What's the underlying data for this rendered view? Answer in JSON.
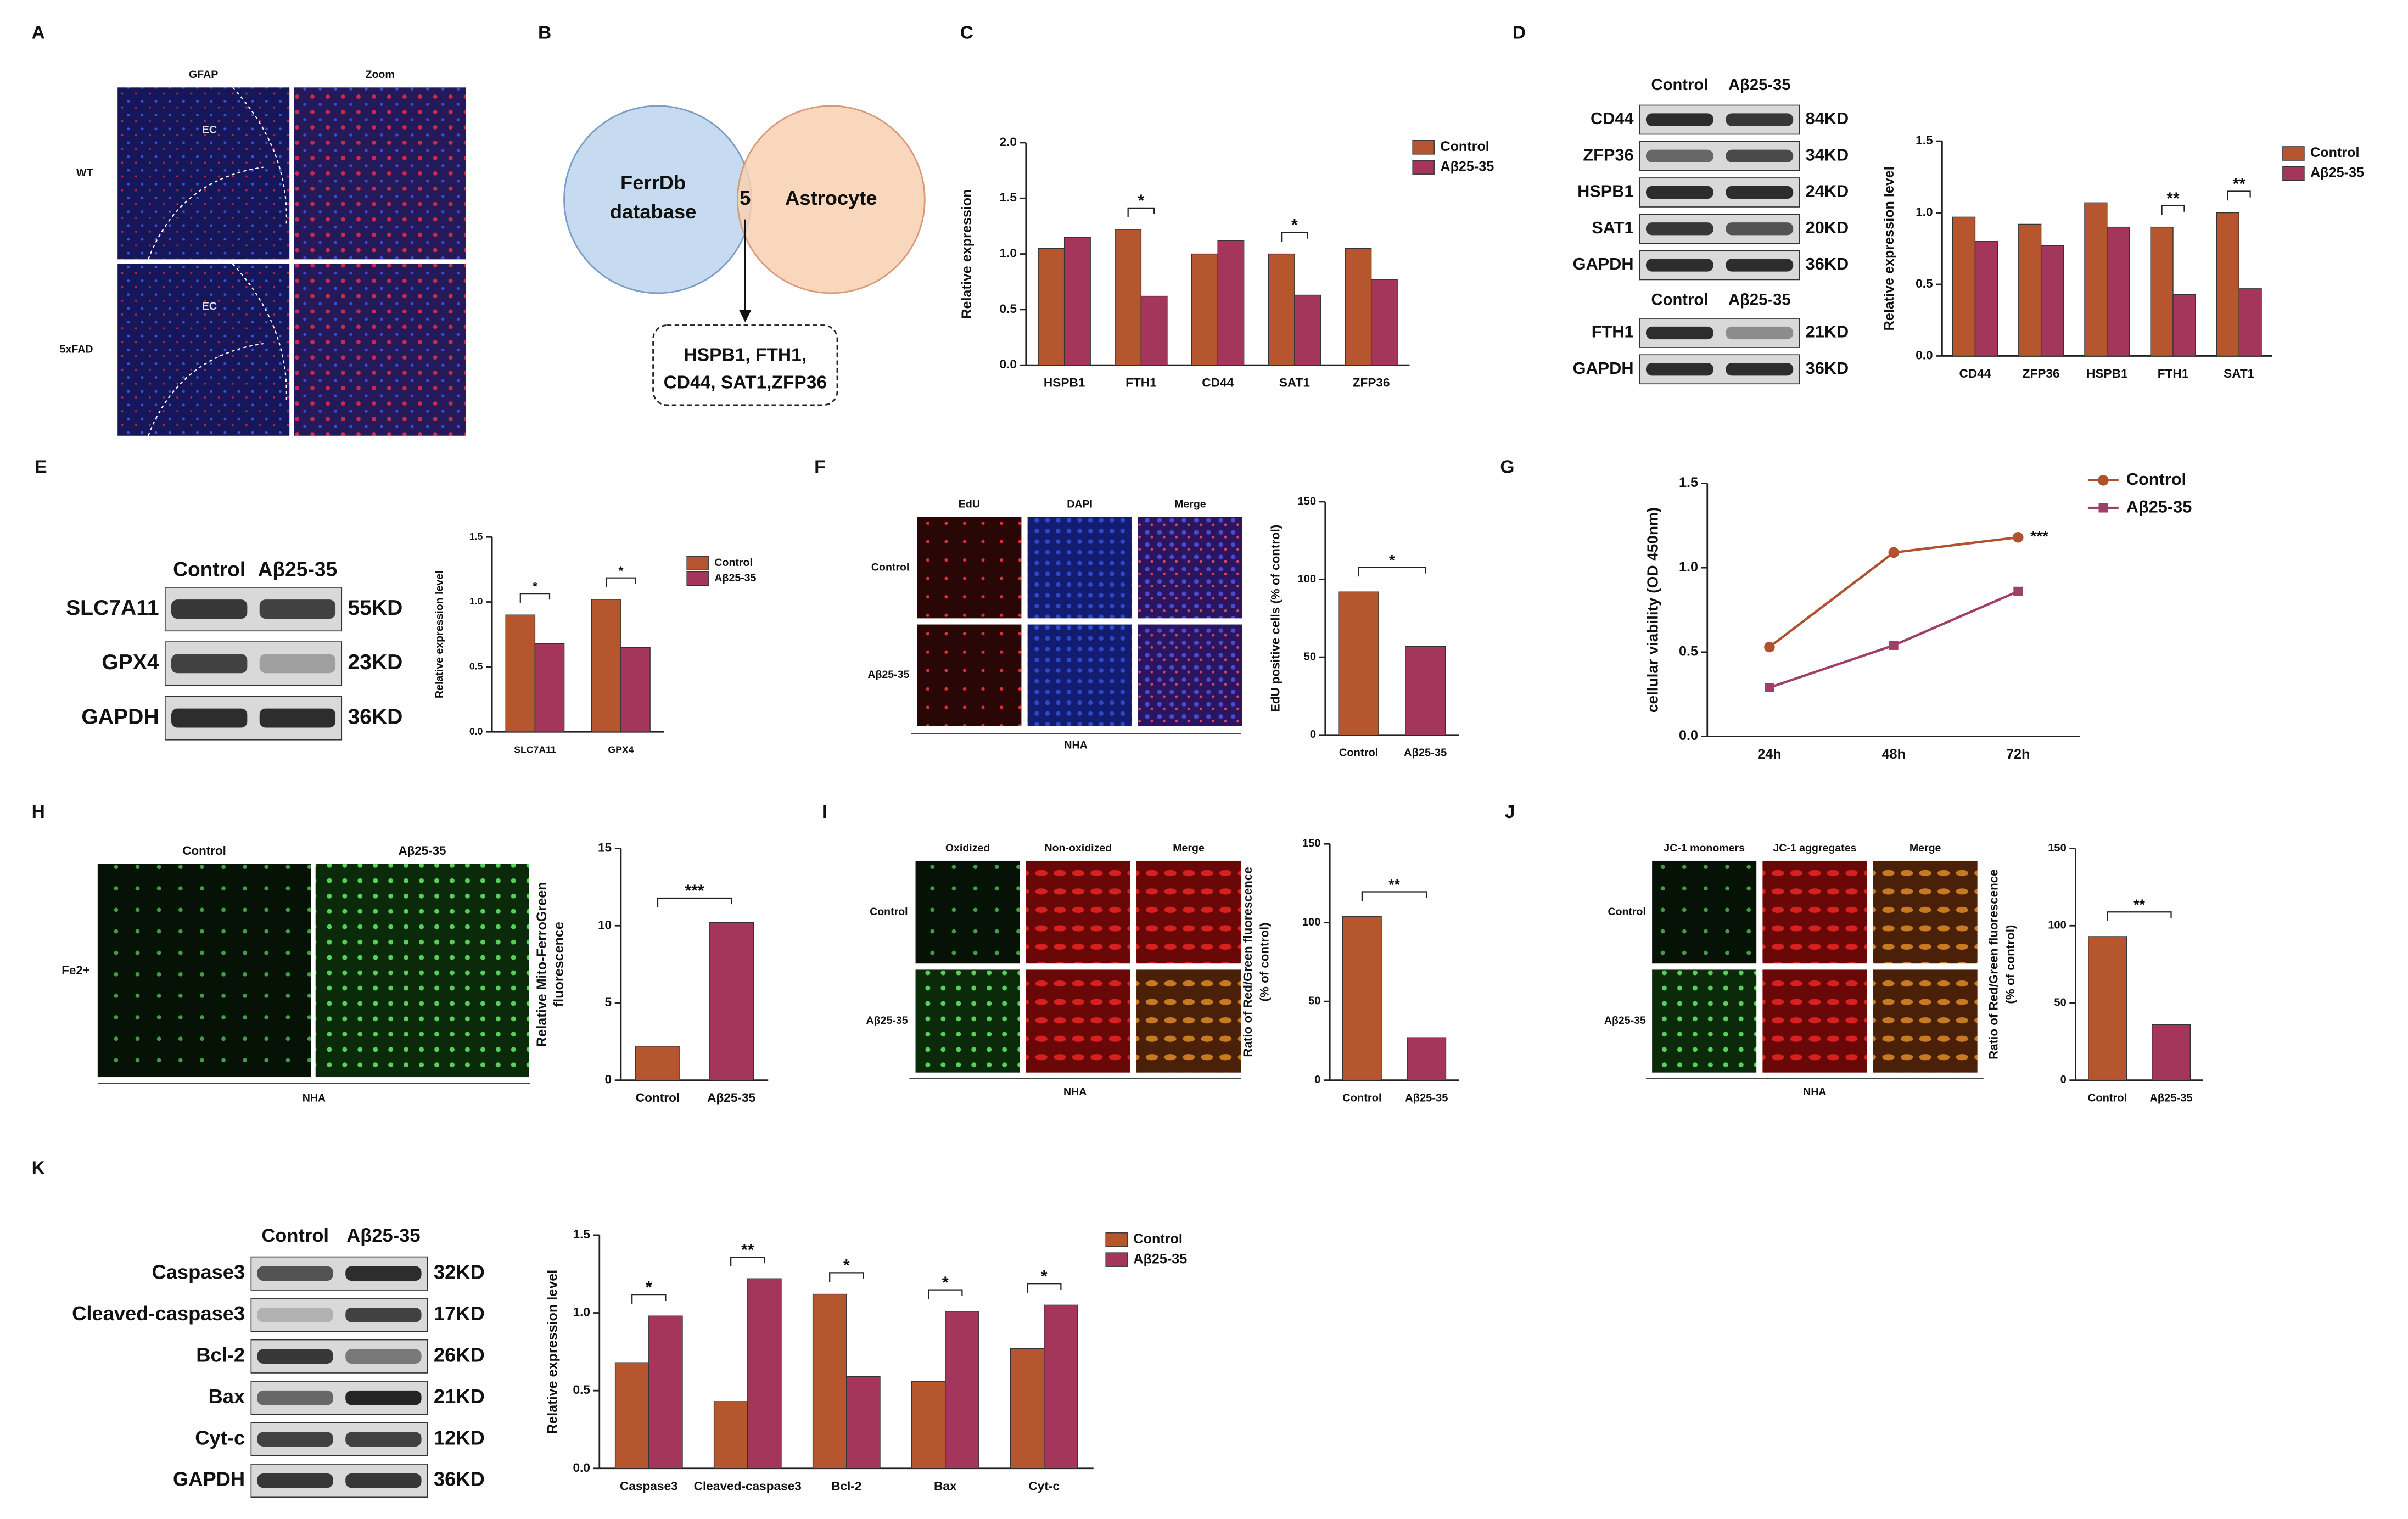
{
  "panel_letters": [
    "A",
    "B",
    "C",
    "D",
    "E",
    "F",
    "G",
    "H",
    "I",
    "J",
    "K"
  ],
  "venn": {
    "left": [
      "FerrDb",
      "database"
    ],
    "overlap": "5",
    "right": "Astrocyte",
    "genes": [
      "HSPB1, FTH1,",
      "CD44, SAT1,ZFP36"
    ]
  },
  "image_panels": [
    {
      "columns": [
        "GFAP",
        "Zoom"
      ],
      "rows": [
        "WT",
        "5xFAD"
      ],
      "region_labels": [
        "EC",
        "EC"
      ]
    },
    {
      "columns": [
        "EdU",
        "DAPI",
        "Merge"
      ],
      "rows": [
        "Control",
        "Aβ25-35"
      ],
      "caption": "NHA"
    },
    {
      "columns": [
        "Control",
        "Aβ25-35"
      ],
      "rows": [
        "Fe2+"
      ],
      "caption": "NHA"
    },
    {
      "columns": [
        "Oxidized",
        "Non-oxidized",
        "Merge"
      ],
      "rows": [
        "Control",
        "Aβ25-35"
      ],
      "caption": "NHA"
    },
    {
      "columns": [
        "JC-1 monomers",
        "JC-1 aggregates",
        "Merge"
      ],
      "rows": [
        "Control",
        "Aβ25-35"
      ],
      "caption": "NHA"
    }
  ],
  "blots": [
    {
      "columns": [
        "Control",
        "Aβ25-35"
      ],
      "rows": [
        {
          "protein": "CD44",
          "size": "84KD"
        },
        {
          "protein": "ZFP36",
          "size": "34KD"
        },
        {
          "protein": "HSPB1",
          "size": "24KD"
        },
        {
          "protein": "SAT1",
          "size": "20KD"
        },
        {
          "protein": "GAPDH",
          "size": "36KD"
        }
      ]
    },
    {
      "columns": [
        "Control",
        "Aβ25-35"
      ],
      "rows": [
        {
          "protein": "FTH1",
          "size": "21KD"
        },
        {
          "protein": "GAPDH",
          "size": "36KD"
        }
      ]
    },
    {
      "columns": [
        "Control",
        "Aβ25-35"
      ],
      "rows": [
        {
          "protein": "SLC7A11",
          "size": "55KD"
        },
        {
          "protein": "GPX4",
          "size": "23KD"
        },
        {
          "protein": "GAPDH",
          "size": "36KD"
        }
      ]
    },
    {
      "columns": [
        "Control",
        "Aβ25-35"
      ],
      "rows": [
        {
          "protein": "Caspase3",
          "size": "32KD"
        },
        {
          "protein": "Cleaved-caspase3",
          "size": "17KD"
        },
        {
          "protein": "Bcl-2",
          "size": "26KD"
        },
        {
          "protein": "Bax",
          "size": "21KD"
        },
        {
          "protein": "Cyt-c",
          "size": "12KD"
        },
        {
          "protein": "GAPDH",
          "size": "36KD"
        }
      ]
    }
  ],
  "chart_data": [
    {
      "type": "bar",
      "ylabel": [
        "Relative expression"
      ],
      "categories": [
        "HSPB1",
        "FTH1",
        "CD44",
        "SAT1",
        "ZFP36"
      ],
      "series": [
        {
          "name": "Control",
          "color": "#b5562f",
          "values": [
            1.05,
            1.22,
            1.0,
            1.0,
            1.05
          ]
        },
        {
          "name": "Aβ25-35",
          "color": "#a3365a",
          "values": [
            1.15,
            0.62,
            1.12,
            0.63,
            0.77
          ]
        }
      ],
      "significance": [
        null,
        "*",
        null,
        "*",
        null
      ],
      "ylim": [
        0,
        2
      ],
      "yticks": [
        {
          "value": 0,
          "label": "0.0"
        },
        0.5,
        {
          "value": 1,
          "label": "1.0"
        },
        1.5,
        {
          "value": 2,
          "label": "2.0"
        }
      ]
    },
    {
      "type": "bar",
      "ylabel": [
        "Relative expression  level"
      ],
      "categories": [
        "CD44",
        "ZFP36",
        "HSPB1",
        "FTH1",
        "SAT1"
      ],
      "series": [
        {
          "name": "Control",
          "color": "#b5562f",
          "values": [
            0.97,
            0.92,
            1.07,
            0.9,
            1.0
          ]
        },
        {
          "name": "Aβ25-35",
          "color": "#a3365a",
          "values": [
            0.8,
            0.77,
            0.9,
            0.43,
            0.47
          ]
        }
      ],
      "significance": [
        null,
        null,
        null,
        "**",
        "**"
      ],
      "ylim": [
        0,
        1.5
      ],
      "yticks": [
        {
          "value": 0,
          "label": "0.0"
        },
        0.5,
        {
          "value": 1,
          "label": "1.0"
        },
        1.5
      ]
    },
    {
      "type": "bar",
      "ylabel": [
        "Relative expression  level"
      ],
      "categories": [
        "SLC7A11",
        "GPX4"
      ],
      "series": [
        {
          "name": "Control",
          "color": "#b5562f",
          "values": [
            0.9,
            1.02
          ]
        },
        {
          "name": "Aβ25-35",
          "color": "#a3365a",
          "values": [
            0.68,
            0.65
          ]
        }
      ],
      "significance": [
        "*",
        "*"
      ],
      "ylim": [
        0,
        1.5
      ],
      "yticks": [
        {
          "value": 0,
          "label": "0.0"
        },
        0.5,
        {
          "value": 1,
          "label": "1.0"
        },
        1.5
      ]
    },
    {
      "type": "bar",
      "ylabel": [
        "EdU positive cells (% of control)"
      ],
      "categories": [
        "Control",
        "Aβ25-35"
      ],
      "values": [
        92,
        57
      ],
      "colors": [
        "#b5562f",
        "#a3365a"
      ],
      "significance": "*",
      "ylim": [
        0,
        150
      ],
      "yticks": [
        0,
        50,
        100,
        150
      ]
    },
    {
      "type": "line",
      "ylabel": [
        "cellular viability (OD 450nm)"
      ],
      "categories": [
        "24h",
        "48h",
        "72h"
      ],
      "series": [
        {
          "name": "Control",
          "color": "#b0522f",
          "marker": "circle",
          "values": [
            0.53,
            1.09,
            1.18
          ]
        },
        {
          "name": "Aβ25-35",
          "color": "#a0406a",
          "marker": "square",
          "values": [
            0.29,
            0.54,
            0.86
          ]
        }
      ],
      "annotation": "***",
      "ylim": [
        0,
        1.5
      ],
      "yticks": [
        {
          "value": 0,
          "label": "0.0"
        },
        0.5,
        {
          "value": 1,
          "label": "1.0"
        },
        1.5
      ]
    },
    {
      "type": "bar",
      "ylabel": [
        "Relative Mito-FerroGreen",
        "fluorescence"
      ],
      "categories": [
        "Control",
        "Aβ25-35"
      ],
      "values": [
        2.2,
        10.2
      ],
      "colors": [
        "#b5562f",
        "#a3365a"
      ],
      "significance": "***",
      "ylim": [
        0,
        15
      ],
      "yticks": [
        0,
        5,
        10,
        15
      ]
    },
    {
      "type": "bar",
      "ylabel": [
        "Ratio of Red/Green fluorescence",
        "(% of control)"
      ],
      "categories": [
        "Control",
        "Aβ25-35"
      ],
      "values": [
        104,
        27
      ],
      "colors": [
        "#b5562f",
        "#a3365a"
      ],
      "significance": "**",
      "ylim": [
        0,
        150
      ],
      "yticks": [
        0,
        50,
        100,
        150
      ]
    },
    {
      "type": "bar",
      "ylabel": [
        "Ratio of Red/Green fluorescence",
        "(% of control)"
      ],
      "categories": [
        "Control",
        "Aβ25-35"
      ],
      "values": [
        93,
        36
      ],
      "colors": [
        "#b5562f",
        "#a3365a"
      ],
      "significance": "**",
      "ylim": [
        0,
        150
      ],
      "yticks": [
        0,
        50,
        100,
        150
      ]
    },
    {
      "type": "bar",
      "ylabel": [
        "Relative expression  level"
      ],
      "categories": [
        "Caspase3",
        "Cleaved-caspase3",
        "Bcl-2",
        "Bax",
        "Cyt-c"
      ],
      "series": [
        {
          "name": "Control",
          "color": "#b5562f",
          "values": [
            0.68,
            0.43,
            1.12,
            0.56,
            0.77
          ]
        },
        {
          "name": "Aβ25-35",
          "color": "#a3365a",
          "values": [
            0.98,
            1.22,
            0.59,
            1.01,
            1.05
          ]
        }
      ],
      "significance": [
        "*",
        "**",
        "*",
        "*",
        "*"
      ],
      "ylim": [
        0,
        1.5
      ],
      "yticks": [
        {
          "value": 0,
          "label": "0.0"
        },
        0.5,
        {
          "value": 1,
          "label": "1.0"
        },
        1.5
      ]
    }
  ]
}
